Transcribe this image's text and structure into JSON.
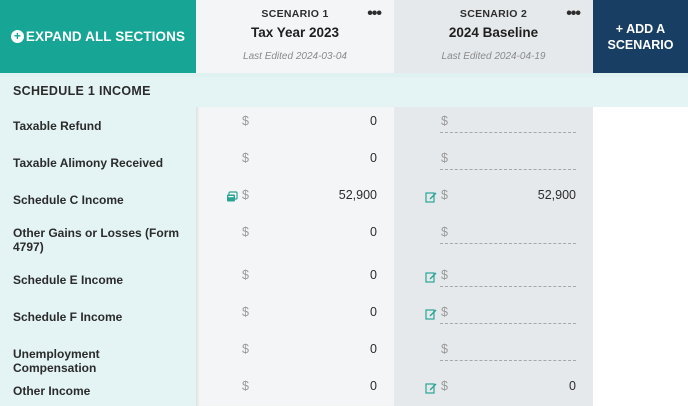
{
  "toolbar": {
    "expand_label": "EXPAND ALL SECTIONS",
    "add_label_line1": "+ ADD A",
    "add_label_line2": "SCENARIO"
  },
  "scenarios": [
    {
      "label": "SCENARIO 1",
      "name": "Tax Year 2023",
      "last_edited": "Last Edited 2024-03-04",
      "more": "•••"
    },
    {
      "label": "SCENARIO 2",
      "name": "2024 Baseline",
      "last_edited": "Last Edited 2024-04-19",
      "more": "•••"
    }
  ],
  "section": {
    "title": "SCHEDULE 1 INCOME"
  },
  "currency_symbol": "$",
  "rows": [
    {
      "label": "Taxable Refund",
      "s1": "0",
      "s2": ""
    },
    {
      "label": "Taxable Alimony Received",
      "s1": "0",
      "s2": ""
    },
    {
      "label": "Schedule C Income",
      "s1": "52,900",
      "s2": "52,900"
    },
    {
      "label": "Other Gains or Losses (Form 4797)",
      "s1": "0",
      "s2": ""
    },
    {
      "label": "Schedule E Income",
      "s1": "0",
      "s2": ""
    },
    {
      "label": "Schedule F Income",
      "s1": "0",
      "s2": ""
    },
    {
      "label": "Unemployment Compensation",
      "s1": "0",
      "s2": ""
    },
    {
      "label": "Other Income",
      "s1": "0",
      "s2": "0"
    }
  ],
  "icons": {
    "expand": "plus-circle-icon",
    "more": "more-horizontal-icon",
    "edit": "edit-pencil-icon",
    "calculator": "calculator-icon"
  },
  "colors": {
    "teal": "#17a596",
    "navy": "#183f63",
    "label_bg": "#e4f4f4",
    "scenario1_bg": "#f4f5f6",
    "scenario2_bg": "#e6e9ec"
  }
}
